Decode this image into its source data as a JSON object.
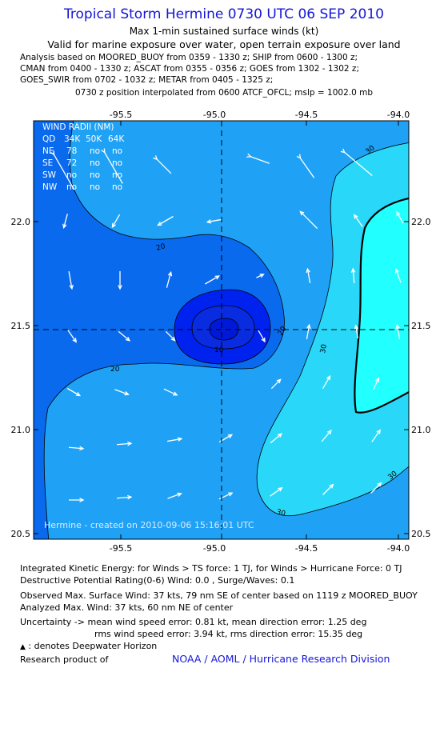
{
  "header": {
    "title": "Tropical Storm Hermine 0730 UTC 06 SEP 2010",
    "subtitle_1": "Max 1-min sustained surface winds (kt)",
    "subtitle_2": "Valid for marine exposure over water, open terrain exposure over land",
    "analysis_lines": [
      "Analysis based on MOORED_BUOY from 0359 - 1330 z; SHIP from 0600 - 1300 z;",
      "CMAN from 0400 - 1330 z; ASCAT from 0355 - 0356 z; GOES from 1302 - 1302 z;",
      "GOES_SWIR from 0702 - 1032 z; METAR from 0405 - 1325 z;"
    ],
    "position_note": "0730 z position interpolated from 0600 ATCF_OFCL; mslp = 1002.0 mb"
  },
  "map": {
    "x_tick_labels": [
      "-95.5",
      "-95.0",
      "-94.5",
      "-94.0"
    ],
    "y_tick_labels": [
      "22.0",
      "21.5",
      "21.0",
      "20.5"
    ],
    "contour_labels": [
      "10",
      "20",
      "20",
      "20",
      "30",
      "30",
      "30",
      "30"
    ],
    "credit": "Hermine - created on 2010-09-06 15:16:01 UTC",
    "wind_radii_table": {
      "title": "WIND RADII (NM)",
      "header": [
        "QD",
        "34K",
        "50K",
        "64K"
      ],
      "rows": [
        [
          "NE",
          "78",
          "no",
          "no"
        ],
        [
          "SE",
          "72",
          "no",
          "no"
        ],
        [
          "SW",
          "no",
          "no",
          "no"
        ],
        [
          "NW",
          "no",
          "no",
          "no"
        ]
      ]
    },
    "colors": {
      "lt10": "#0022ee",
      "c10_20": "#0a6aee",
      "c20_30": "#1fa2f5",
      "c30_40": "#29d8f8",
      "gt40": "#22ffff",
      "contour": "#000000",
      "arrows": "#ffffff",
      "text_overlay": "#ffffff"
    }
  },
  "footer": {
    "ike_line": "Integrated Kinetic Energy:  for Winds > TS force: 1 TJ,  for Winds > Hurricane Force: 0 TJ",
    "dpr_line": "Destructive Potential Rating(0-6)   Wind: 0.0 , Surge/Waves: 0.1",
    "obs_max_line": "Observed Max. Surface Wind: 37 kts, 79 nm SE of center based on 1119 z MOORED_BUOY",
    "analyzed_max_line": "Analyzed Max. Wind: 37 kts, 60 nm NE of center",
    "uncertainty_line_1": "Uncertainty -> mean wind speed error: 0.81 kt,   mean direction error: 1.25 deg",
    "uncertainty_line_2": "rms wind speed error: 3.94 kt,   rms direction error: 15.35 deg",
    "deepwater_note": ": denotes Deepwater Horizon",
    "research_label": "Research product of",
    "research_org": "NOAA / AOML / Hurricane Research Division"
  }
}
